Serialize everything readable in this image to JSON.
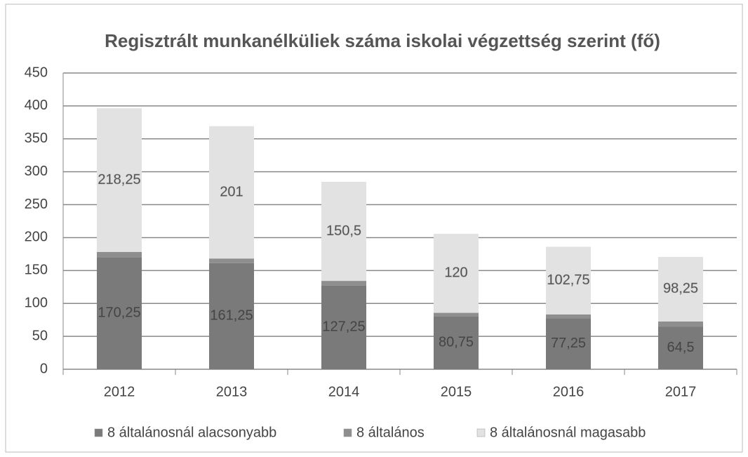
{
  "chart_data": {
    "type": "stacked_bar",
    "title": "Regisztrált munkanélküliek száma iskolai végzettség szerint (fő)",
    "categories": [
      "2012",
      "2013",
      "2014",
      "2015",
      "2016",
      "2017"
    ],
    "series": [
      {
        "name": "8 általánosnál alacsonyabb",
        "color": "#7a7a7a",
        "values": [
          170.25,
          161.25,
          127.25,
          80.75,
          77.25,
          64.5
        ],
        "value_labels": [
          "170,25",
          "161,25",
          "127,25",
          "80,75",
          "77,25",
          "64,5"
        ]
      },
      {
        "name": "8 általános",
        "color": "#8e8e8e",
        "values": [
          8,
          7,
          7,
          5,
          6,
          8
        ]
      },
      {
        "name": "8 általánosnál magasabb",
        "color": "#e2e2e2",
        "values": [
          218.25,
          201,
          150.5,
          120,
          102.75,
          98.25
        ],
        "value_labels": [
          "218,25",
          "201",
          "150,5",
          "120",
          "102,75",
          "98,25"
        ]
      }
    ],
    "ylim": [
      0,
      450
    ],
    "yticks": [
      0,
      50,
      100,
      150,
      200,
      250,
      300,
      350,
      400,
      450
    ],
    "grid": true,
    "legend": "bottom"
  }
}
